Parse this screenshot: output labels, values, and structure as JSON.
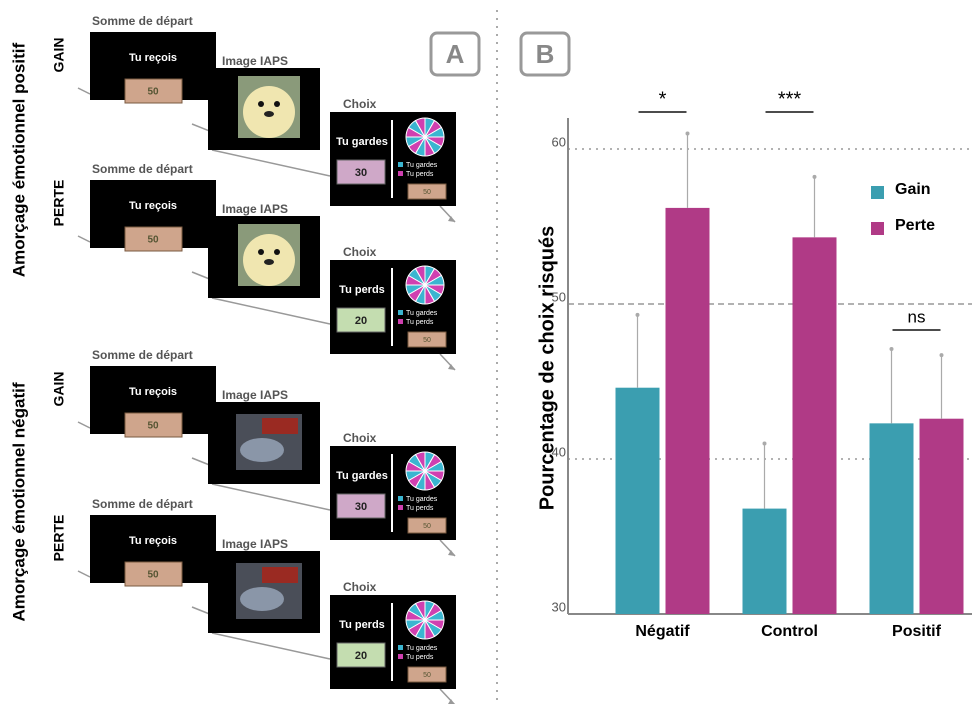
{
  "panel_a": {
    "label": "A",
    "groups": [
      {
        "label": "Amorçage émotionnel positif",
        "trials": [
          {
            "condition": "GAIN",
            "start_title": "Somme de départ",
            "start_text": "Tu reçois",
            "start_amount": "50",
            "image_title": "Image IAPS",
            "choice_title": "Choix",
            "choice_text": "Tu gardes",
            "choice_amount": "30",
            "legend": [
              "Tu gardes",
              "Tu perds"
            ],
            "small_amount": "50"
          },
          {
            "condition": "PERTE",
            "start_title": "Somme de départ",
            "start_text": "Tu reçois",
            "start_amount": "50",
            "image_title": "Image IAPS",
            "choice_title": "Choix",
            "choice_text": "Tu perds",
            "choice_amount": "20",
            "legend": [
              "Tu gardes",
              "Tu perds"
            ],
            "small_amount": "50"
          }
        ]
      },
      {
        "label": "Amorçage émotionnel négatif",
        "trials": [
          {
            "condition": "GAIN",
            "start_title": "Somme de départ",
            "start_text": "Tu reçois",
            "start_amount": "50",
            "image_title": "Image IAPS",
            "choice_title": "Choix",
            "choice_text": "Tu gardes",
            "choice_amount": "30",
            "legend": [
              "Tu gardes",
              "Tu perds"
            ],
            "small_amount": "50"
          },
          {
            "condition": "PERTE",
            "start_title": "Somme de départ",
            "start_text": "Tu reçois",
            "start_amount": "50",
            "image_title": "Image IAPS",
            "choice_title": "Choix",
            "choice_text": "Tu perds",
            "choice_amount": "20",
            "legend": [
              "Tu gardes",
              "Tu perds"
            ],
            "small_amount": "50"
          }
        ]
      }
    ]
  },
  "chart_data": {
    "type": "bar",
    "panel_label": "B",
    "ylabel": "Pourcentage de choix risqués",
    "categories": [
      "Négatif",
      "Control",
      "Positif"
    ],
    "series": [
      {
        "name": "Gain",
        "color": "#3b9eb0",
        "values": [
          44.6,
          36.8,
          42.3
        ],
        "errors": [
          4.7,
          4.2,
          4.8
        ]
      },
      {
        "name": "Perte",
        "color": "#b03a86",
        "values": [
          56.2,
          54.3,
          42.6
        ],
        "errors": [
          4.8,
          3.9,
          4.1
        ]
      }
    ],
    "significance": [
      "*",
      "***",
      "ns"
    ],
    "ylim": [
      30,
      62
    ],
    "yticks": [
      30,
      40,
      50,
      60
    ],
    "grid": true
  }
}
